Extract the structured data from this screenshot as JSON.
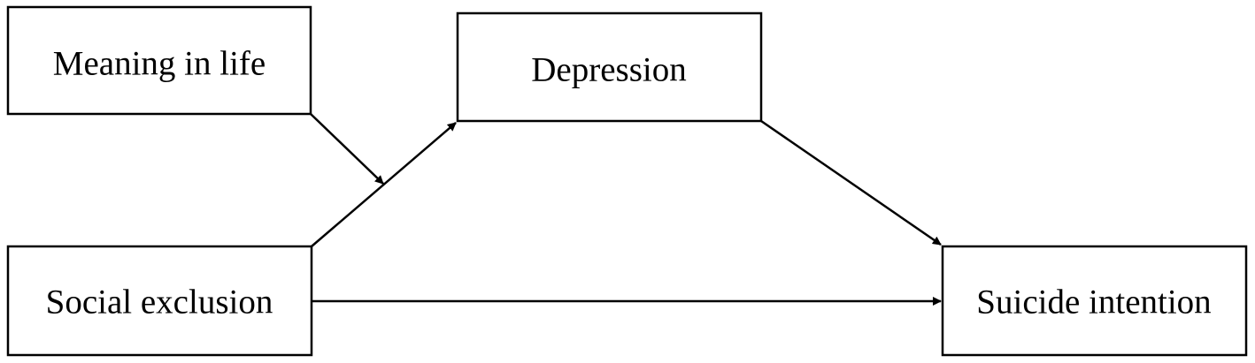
{
  "nodes": {
    "meaning": {
      "label": "Meaning in life"
    },
    "depression": {
      "label": "Depression"
    },
    "social": {
      "label": "Social exclusion"
    },
    "suicide": {
      "label": "Suicide intention"
    }
  },
  "edges": [
    {
      "from": "social",
      "to": "depression",
      "type": "arrow"
    },
    {
      "from": "depression",
      "to": "suicide",
      "type": "arrow"
    },
    {
      "from": "social",
      "to": "suicide",
      "type": "arrow"
    },
    {
      "from": "meaning",
      "to": "social-depression-path",
      "type": "moderation-arrow"
    }
  ],
  "colors": {
    "stroke": "#000000",
    "background": "#ffffff"
  }
}
